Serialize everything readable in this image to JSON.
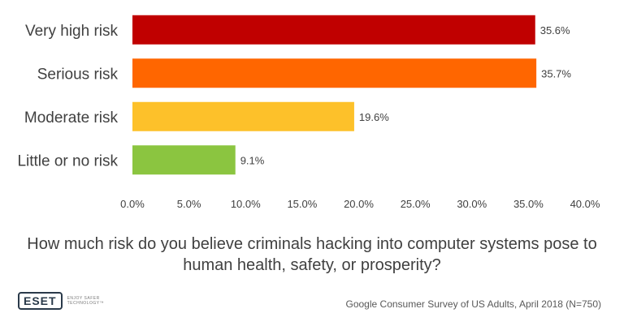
{
  "chart_data": {
    "type": "bar",
    "orientation": "horizontal",
    "categories": [
      "Very high risk",
      "Serious risk",
      "Moderate risk",
      "Little or no risk"
    ],
    "values": [
      35.6,
      35.7,
      19.6,
      9.1
    ],
    "value_labels": [
      "35.6%",
      "35.7%",
      "19.6%",
      "9.1%"
    ],
    "colors": [
      "#c00000",
      "#ff6600",
      "#fdc12a",
      "#8bc540"
    ],
    "xlim": [
      0,
      40
    ],
    "xticks": [
      0,
      5,
      10,
      15,
      20,
      25,
      30,
      35,
      40
    ],
    "xtick_labels": [
      "0.0%",
      "5.0%",
      "10.0%",
      "15.0%",
      "20.0%",
      "25.0%",
      "30.0%",
      "35.0%",
      "40.0%"
    ],
    "grid": false,
    "legend": "none",
    "title": "",
    "xlabel": "",
    "ylabel": ""
  },
  "question_line1": "How much risk do you believe criminals hacking into computer systems pose to",
  "question_line2": "human health, safety, or prosperity?",
  "logo": {
    "name": "ESET",
    "tagline": "ENJOY SAFER TECHNOLOGY™"
  },
  "source": "Google Consumer Survey of US Adults, April 2018 (N=750)"
}
